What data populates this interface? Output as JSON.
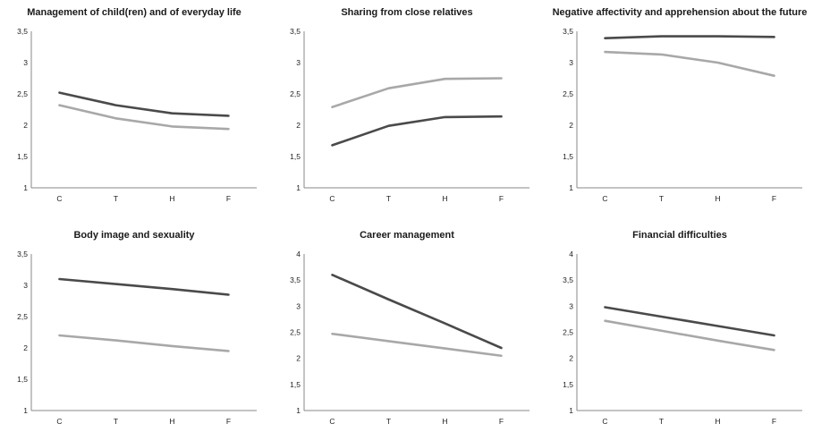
{
  "chart_data": [
    {
      "type": "line",
      "title": "Management of child(ren) and of everyday life",
      "categories": [
        "C",
        "T",
        "H",
        "F"
      ],
      "ylim": [
        1,
        3.5
      ],
      "yticks": [
        "1",
        "1,5",
        "2",
        "2,5",
        "3",
        "3,5"
      ],
      "grid": false,
      "series": [
        {
          "color": "#4a4a4a",
          "values": [
            2.52,
            2.32,
            2.19,
            2.15
          ]
        },
        {
          "color": "#a8a8a8",
          "values": [
            2.32,
            2.11,
            1.98,
            1.94
          ]
        }
      ]
    },
    {
      "type": "line",
      "title": "Sharing from close relatives",
      "categories": [
        "C",
        "T",
        "H",
        "F"
      ],
      "ylim": [
        1,
        3.5
      ],
      "yticks": [
        "1",
        "1,5",
        "2",
        "2,5",
        "3",
        "3,5"
      ],
      "grid": false,
      "series": [
        {
          "color": "#4a4a4a",
          "values": [
            1.68,
            1.99,
            2.13,
            2.14
          ]
        },
        {
          "color": "#a8a8a8",
          "values": [
            2.29,
            2.59,
            2.74,
            2.75
          ]
        }
      ]
    },
    {
      "type": "line",
      "title": "Negative affectivity and apprehension about the future",
      "categories": [
        "C",
        "T",
        "H",
        "F"
      ],
      "ylim": [
        1,
        3.5
      ],
      "yticks": [
        "1",
        "1,5",
        "2",
        "2,5",
        "3",
        "3,5"
      ],
      "grid": false,
      "series": [
        {
          "color": "#4a4a4a",
          "values": [
            3.39,
            3.42,
            3.42,
            3.41
          ]
        },
        {
          "color": "#a8a8a8",
          "values": [
            3.17,
            3.13,
            3.0,
            2.79
          ]
        }
      ]
    },
    {
      "type": "line",
      "title": "Body image and sexuality",
      "categories": [
        "C",
        "T",
        "H",
        "F"
      ],
      "ylim": [
        1,
        3.5
      ],
      "yticks": [
        "1",
        "1,5",
        "2",
        "2,5",
        "3",
        "3,5"
      ],
      "grid": false,
      "series": [
        {
          "color": "#4a4a4a",
          "values": [
            3.1,
            3.02,
            2.94,
            2.85
          ]
        },
        {
          "color": "#a8a8a8",
          "values": [
            2.2,
            2.12,
            2.03,
            1.95
          ]
        }
      ]
    },
    {
      "type": "line",
      "title": "Career management",
      "categories": [
        "C",
        "T",
        "H",
        "F"
      ],
      "ylim": [
        1,
        4
      ],
      "yticks": [
        "1",
        "1,5",
        "2",
        "2,5",
        "3",
        "3,5",
        "4"
      ],
      "grid": false,
      "series": [
        {
          "color": "#4a4a4a",
          "values": [
            3.6,
            3.13,
            2.67,
            2.2
          ]
        },
        {
          "color": "#a8a8a8",
          "values": [
            2.47,
            2.33,
            2.19,
            2.05
          ]
        }
      ]
    },
    {
      "type": "line",
      "title": "Financial difficulties",
      "categories": [
        "C",
        "T",
        "H",
        "F"
      ],
      "ylim": [
        1,
        4
      ],
      "yticks": [
        "1",
        "1,5",
        "2",
        "2,5",
        "3",
        "3,5",
        "4"
      ],
      "grid": false,
      "series": [
        {
          "color": "#4a4a4a",
          "values": [
            2.98,
            2.8,
            2.62,
            2.44
          ]
        },
        {
          "color": "#a8a8a8",
          "values": [
            2.72,
            2.53,
            2.34,
            2.16
          ]
        }
      ]
    }
  ]
}
